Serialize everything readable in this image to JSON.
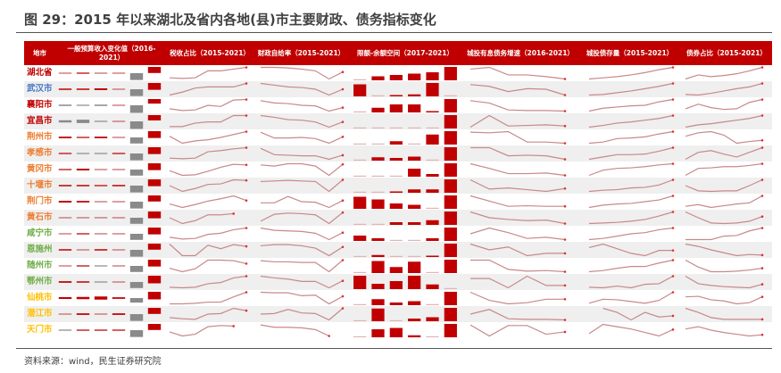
{
  "title": "图 29：2015 年以来湖北及省内各地(县)市主要财政、债务指标变化",
  "source": "资料来源：wind，民生证券研究院",
  "colors": {
    "header_bg": "#c00000",
    "positive": "#c00000",
    "negative": "#808080",
    "line": "#c9888a",
    "marker": "#e03030",
    "row_alt": "#efefef",
    "name_colors": {
      "province": "#c00000",
      "wuhan": "#4472c4",
      "tier1": "#c00000",
      "tier2": "#ed7d31",
      "tier3": "#70ad47",
      "tier4": "#ffc000"
    }
  },
  "headers": [
    "地市",
    "一般预算收入变化值（2016-2021）",
    "税收占比（2015-2021）",
    "财政自给率（2015-2021）",
    "限额-余额空间（2017-2021）",
    "城投有息债务增速（2016-2021）",
    "城投债存量（2015-2021）",
    "债券占比（2015-2021）"
  ],
  "rows": [
    {
      "name": "湖北省",
      "tier": "province",
      "revenue": [
        0.03,
        0.05,
        0.03,
        0.03,
        -0.9,
        0.8
      ],
      "tax": [
        0.1,
        0.05,
        0.1,
        0.7,
        0.7,
        0.85,
        1
      ],
      "self": [
        1,
        1,
        0.95,
        0.85,
        0.7,
        0,
        0.6
      ],
      "space": [
        0.05,
        0.3,
        0.4,
        0.5,
        0.6,
        1
      ],
      "growth": [
        0.85,
        1,
        0.35,
        0.35,
        0.2,
        0
      ],
      "stock": [
        0,
        0.1,
        0.2,
        0.35,
        0.55,
        0.8,
        1
      ],
      "share": [
        0,
        0.35,
        0.2,
        0.3,
        0.45,
        0.7,
        1
      ]
    },
    {
      "name": "武汉市",
      "tier": "wuhan",
      "revenue": [
        0.06,
        0.06,
        0.08,
        0.04,
        -0.9,
        0.9
      ],
      "tax": [
        0,
        0.25,
        0.6,
        0.7,
        0.7,
        0.7,
        1
      ],
      "self": [
        1,
        0.85,
        0.7,
        0.65,
        0.5,
        0,
        0.5
      ],
      "space": [
        0.9,
        0,
        0.1,
        0.15,
        1,
        0.05
      ],
      "growth": [
        0.9,
        0.75,
        0.3,
        0.55,
        0.5,
        0
      ],
      "stock": [
        0,
        0.05,
        0.2,
        0.35,
        0.55,
        0.75,
        1
      ],
      "share": [
        0.05,
        0,
        0.15,
        0.35,
        0.55,
        0.7,
        1
      ]
    },
    {
      "name": "襄阳市",
      "tier": "tier1",
      "revenue": [
        -0.06,
        -0.04,
        -0.06,
        0.02,
        -1,
        0.6
      ],
      "tax": [
        0.2,
        0.05,
        0.1,
        0.5,
        0.4,
        0.95,
        1
      ],
      "self": [
        0.9,
        0.7,
        0.65,
        0.5,
        0.45,
        0,
        0.3
      ],
      "space": [
        0.05,
        0.35,
        0.6,
        0.6,
        0.1,
        1
      ],
      "growth": [
        0.9,
        0.7,
        0.1,
        0.05,
        0.05,
        0
      ],
      "stock": [
        0,
        0.25,
        0.35,
        0.45,
        0.5,
        0.8,
        1
      ],
      "share": [
        0.2,
        0.6,
        0.3,
        0.15,
        0.2,
        0.75,
        1
      ]
    },
    {
      "name": "宜昌市",
      "tier": "tier1",
      "revenue": [
        -0.1,
        -0.15,
        -0.02,
        0.02,
        -1,
        0.7
      ],
      "tax": [
        0.05,
        0.05,
        0.35,
        0.45,
        0.45,
        1,
        1
      ],
      "self": [
        1,
        0.85,
        0.65,
        0.6,
        0.45,
        0,
        0.45
      ],
      "space": [
        0,
        0,
        0.05,
        0.05,
        0.05,
        1
      ],
      "growth": [
        0,
        1,
        0.1,
        0.15,
        0.2,
        0.1
      ],
      "stock": [
        0,
        0.15,
        0.35,
        0.45,
        0.6,
        0.75,
        1
      ],
      "share": [
        0,
        0.2,
        0.3,
        0.45,
        0.6,
        0.75,
        1
      ]
    },
    {
      "name": "荆州市",
      "tier": "tier2",
      "revenue": [
        0.07,
        0.05,
        0.07,
        0.04,
        -0.8,
        0.9
      ],
      "tax": [
        0.6,
        0,
        0.2,
        0.3,
        0.5,
        0.75,
        1
      ],
      "self": [
        0.95,
        0.45,
        0.45,
        0.5,
        0.4,
        0,
        0.55
      ],
      "space": [
        0,
        0,
        0.25,
        0.05,
        0.75,
        1
      ],
      "growth": [
        0.95,
        0.9,
        1,
        0.1,
        0.1,
        0
      ],
      "stock": [
        0,
        0.1,
        0.4,
        0.45,
        0.55,
        0.8,
        1
      ],
      "share": [
        0.6,
        0.9,
        1,
        0.7,
        0,
        0.15,
        0.25
      ]
    },
    {
      "name": "孝感市",
      "tier": "tier2",
      "revenue": [
        0.05,
        -0.03,
        -0.02,
        0.05,
        -0.9,
        0.9
      ],
      "tax": [
        0.1,
        0.05,
        0.1,
        0.65,
        0.75,
        0.9,
        1
      ],
      "self": [
        0.95,
        0.4,
        0.35,
        0.3,
        0.3,
        0,
        0.35
      ],
      "space": [
        0,
        0.25,
        0.2,
        0.3,
        0.05,
        1
      ],
      "growth": [
        1,
        1,
        0.3,
        0.35,
        0.3,
        0
      ],
      "stock": [
        0,
        0.2,
        0.4,
        0.4,
        0.45,
        0.7,
        1
      ],
      "share": [
        0,
        0.6,
        0.75,
        0.45,
        0.2,
        0.6,
        1
      ]
    },
    {
      "name": "黄冈市",
      "tier": "tier2",
      "revenue": [
        0.05,
        0.08,
        0.04,
        0.02,
        -0.8,
        0.9
      ],
      "tax": [
        0.4,
        0,
        0.05,
        0.35,
        0.7,
        0.95,
        0.9
      ],
      "self": [
        0.9,
        0.8,
        1,
        1,
        0.8,
        0,
        0.95
      ],
      "space": [
        0,
        0,
        0.05,
        0.6,
        0.2,
        1
      ],
      "growth": [
        1,
        0.6,
        0.15,
        0.15,
        0.2,
        0
      ],
      "stock": [
        0,
        0.45,
        0.6,
        0.65,
        0.75,
        0.9,
        1
      ],
      "share": [
        0,
        0.6,
        0.65,
        0.75,
        0.75,
        0.85,
        1
      ]
    },
    {
      "name": "十堰市",
      "tier": "tier2",
      "revenue": [
        0.06,
        0.06,
        0.05,
        0.06,
        -0.9,
        0.9
      ],
      "tax": [
        0.5,
        0,
        0.25,
        0.6,
        0.65,
        1,
        0.95
      ],
      "self": [
        0.85,
        0.9,
        0.95,
        0.9,
        0.85,
        0,
        1
      ],
      "space": [
        0,
        0.05,
        0.1,
        0.25,
        0.25,
        1
      ],
      "growth": [
        1,
        0.2,
        0.3,
        0.15,
        0,
        0.25
      ],
      "stock": [
        0,
        0.1,
        0.15,
        0.3,
        0.35,
        0.55,
        1
      ],
      "share": [
        0.5,
        0.05,
        0,
        0.05,
        0.05,
        0.5,
        1
      ]
    },
    {
      "name": "荆门市",
      "tier": "tier2",
      "revenue": [
        0.08,
        0.07,
        0.04,
        0.04,
        -0.9,
        0.8
      ],
      "tax": [
        0.3,
        0,
        0.25,
        0.55,
        0.75,
        1,
        0.6
      ],
      "self": [
        0.4,
        0.4,
        0.95,
        0.5,
        0.45,
        0,
        0.6
      ],
      "space": [
        0.9,
        0.7,
        0.4,
        0.3,
        0.05,
        1
      ],
      "growth": [
        1,
        0.55,
        0.1,
        0.15,
        0.1,
        0.1
      ],
      "stock": [
        0,
        0.2,
        0.3,
        0.35,
        0.5,
        0.65,
        1
      ],
      "share": [
        0.1,
        0.25,
        0,
        0.15,
        0.3,
        0.4,
        1
      ]
    },
    {
      "name": "黄石市",
      "tier": "tier2",
      "revenue": [
        0.04,
        0.04,
        0.04,
        0.03,
        -0.8,
        0.9
      ],
      "tax": [
        0.5,
        0,
        0.25,
        0.75,
        0.75,
        0.85,
        null
      ],
      "self": [
        0.2,
        0.8,
        0.9,
        0.85,
        0.75,
        0,
        0.95
      ],
      "space": [
        0.05,
        0.05,
        0.2,
        0.2,
        0.35,
        1
      ],
      "growth": [
        1,
        0.5,
        0.35,
        0.25,
        0.3,
        0
      ],
      "stock": [
        0,
        0.05,
        0.1,
        0.2,
        0.35,
        0.65,
        1
      ],
      "share": [
        1,
        0.5,
        0.05,
        0,
        0.05,
        0.2,
        0.6
      ]
    },
    {
      "name": "咸宁市",
      "tier": "tier3",
      "revenue": [
        0.04,
        0.05,
        0.04,
        0.04,
        -0.8,
        0.9
      ],
      "tax": [
        0.2,
        0.05,
        0.1,
        0.45,
        0.55,
        0.85,
        1
      ],
      "self": [
        1,
        0.8,
        0.75,
        0.7,
        0.55,
        0,
        0.6
      ],
      "space": [
        0.4,
        0.2,
        0.05,
        0.05,
        0.2,
        1
      ],
      "growth": [
        0.5,
        1,
        0.6,
        0.1,
        0.2,
        0
      ],
      "stock": [
        0,
        0.1,
        0.3,
        0.5,
        0.6,
        0.85,
        1
      ],
      "share": [
        0,
        0,
        0,
        0.3,
        0.35,
        0.75,
        1
      ]
    },
    {
      "name": "恩施州",
      "tier": "tier3",
      "revenue": [
        0.06,
        0.04,
        0.06,
        0.02,
        -0.9,
        0.8
      ],
      "tax": [
        1,
        0,
        0,
        0.9,
        0.6,
        0.95,
        0.8
      ],
      "self": [
        0.85,
        0.95,
        0.95,
        0.85,
        0.65,
        0,
        0.75
      ],
      "space": [
        0,
        0.15,
        0.05,
        0.05,
        0.1,
        1
      ],
      "growth": [
        1,
        0.5,
        0.75,
        0,
        0.2,
        0.2
      ],
      "stock": [
        0.7,
        1,
        0.6,
        0.2,
        0,
        0.45,
        0.45
      ],
      "share": [
        1,
        0.8,
        0.5,
        0.25,
        0,
        0.1,
        0.05
      ]
    },
    {
      "name": "随州市",
      "tier": "tier3",
      "revenue": [
        0.04,
        0.05,
        -0.04,
        0.04,
        -0.8,
        0.9
      ],
      "tax": [
        0.3,
        0,
        0.25,
        1,
        1,
        0.95,
        0.7
      ],
      "self": [
        0.95,
        0.85,
        0.85,
        0.8,
        0.8,
        0,
        1
      ],
      "space": [
        0,
        0.9,
        0.45,
        0.85,
        0.05,
        1
      ],
      "growth": [
        1,
        1,
        0.2,
        0.05,
        0.1,
        0
      ],
      "stock": [
        0,
        0.1,
        0.3,
        0.45,
        0.45,
        0.75,
        1
      ],
      "share": [
        1,
        0.4,
        0,
        0,
        0.05,
        0.15,
        0.3
      ]
    },
    {
      "name": "鄂州市",
      "tier": "tier3",
      "revenue": [
        0.07,
        0.06,
        -0.03,
        0.04,
        -0.8,
        1
      ],
      "tax": [
        0.05,
        0,
        0.05,
        0.35,
        0.45,
        0.85,
        1
      ],
      "self": [
        1,
        0.85,
        0.75,
        0.55,
        0.55,
        0,
        0.6
      ],
      "space": [
        1,
        0.4,
        0.6,
        1,
        0.35,
        0
      ],
      "growth": [
        0.8,
        0.8,
        0,
        1,
        0.2,
        0.2
      ],
      "stock": [
        0.05,
        0,
        0.15,
        0,
        0.3,
        0.35,
        1
      ],
      "share": [
        1,
        0.35,
        0.2,
        0.1,
        0.05,
        0,
        0.3
      ]
    },
    {
      "name": "仙桃市",
      "tier": "tier4",
      "revenue": [
        0.08,
        0.1,
        0.14,
        0.07,
        -0.6,
        1
      ],
      "tax": [
        0,
        0,
        0.05,
        0.15,
        0.15,
        0.6,
        1
      ],
      "self": [
        1,
        0.95,
        0.95,
        0.7,
        0.75,
        0,
        0.65
      ],
      "space": [
        0,
        0.45,
        0.2,
        0.3,
        0.05,
        1
      ],
      "growth": [
        1,
        0.3,
        0,
        0.1,
        0.4,
        0.4
      ],
      "stock": [
        0.05,
        0.4,
        0.35,
        0.2,
        0.05,
        0.3,
        1
      ],
      "share": [
        0.6,
        0.65,
        0.35,
        0.25,
        0,
        0.1,
        0.6
      ]
    },
    {
      "name": "潜江市",
      "tier": "tier4",
      "revenue": [
        0.03,
        0.07,
        0.04,
        0.07,
        -0.9,
        0.8
      ],
      "tax": [
        0.2,
        0.1,
        0.05,
        0.5,
        0.55,
        1,
        0.8
      ],
      "self": [
        0.5,
        0.55,
        0.9,
        0.6,
        0.55,
        0,
        1
      ],
      "space": [
        0,
        0.95,
        0.05,
        0.2,
        0.3,
        1
      ],
      "growth": [
        0.5,
        0.9,
        0.1,
        0.05,
        0.05,
        0
      ],
      "stock": [
        null,
        1,
        0.65,
        0,
        0.65,
        0.25,
        0.35
      ],
      "share": [
        1,
        0.65,
        0.2,
        0.05,
        0.05,
        0.05,
        0.05
      ]
    },
    {
      "name": "天门市",
      "tier": "tier4",
      "revenue": [
        -0.05,
        0.05,
        0.05,
        0.05,
        -0.9,
        0.8
      ],
      "tax": [
        0.35,
        0,
        0.15,
        0.8,
        0.9,
        0.85,
        null
      ],
      "self": [
        0.95,
        0.75,
        0.75,
        0.7,
        0.55,
        0,
        null
      ],
      "space": [
        0,
        0.6,
        0.7,
        0.15,
        0.05,
        1
      ],
      "growth": [
        0.95,
        0,
        0.9,
        0.9,
        0.15,
        0.35
      ],
      "stock": [
        0.2,
        1,
        0.8,
        0.6,
        0.3,
        0,
        0.55
      ],
      "share": [
        0.6,
        0.8,
        0.5,
        0.3,
        0.15,
        0,
        0.1
      ]
    }
  ]
}
